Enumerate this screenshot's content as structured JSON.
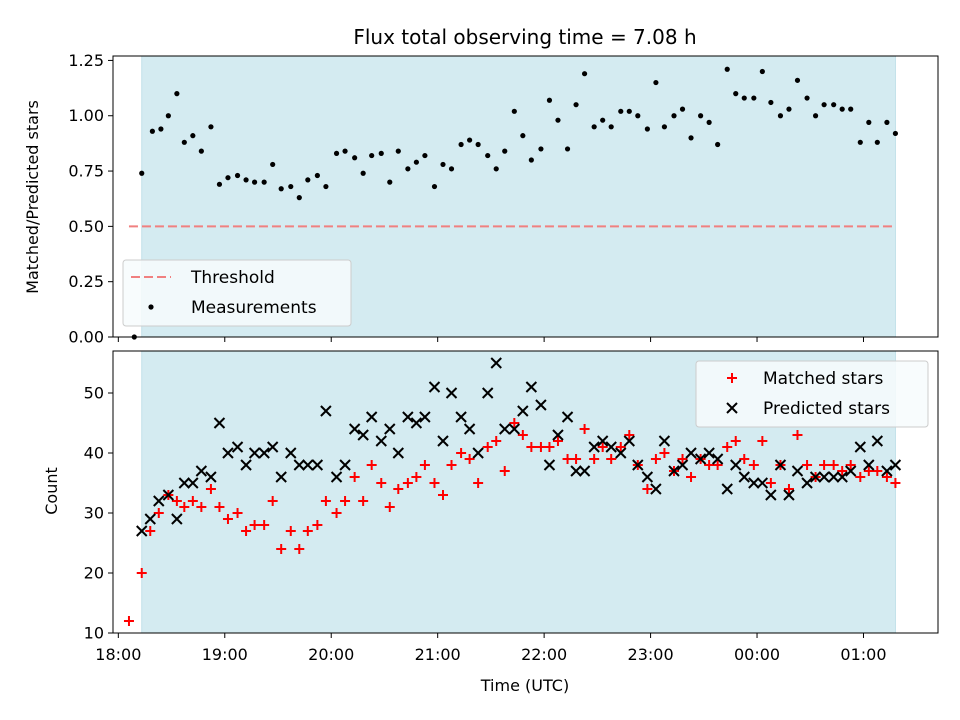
{
  "chart_data": [
    {
      "type": "scatter",
      "title": "Flux total observing time = 7.08 h",
      "xlabel": "",
      "ylabel": "Matched/Predicted stars",
      "x_unit": "hours (UTC, continuing past midnight)",
      "xlim": [
        17.95,
        25.7
      ],
      "ylim": [
        0,
        1.27
      ],
      "yticks": [
        0,
        0.25,
        0.5,
        0.75,
        1.0,
        1.25
      ],
      "ytick_labels": [
        "0.00",
        "0.25",
        "0.50",
        "0.75",
        "1.00",
        "1.25"
      ],
      "shaded_span": [
        18.22,
        25.3
      ],
      "shade_color": "#d4ebf1",
      "threshold": {
        "name": "Threshold",
        "y": 0.5,
        "x": [
          18.1,
          25.3
        ],
        "color": "#f08080",
        "style": "dashed"
      },
      "series": [
        {
          "name": "Measurements",
          "color": "#000000",
          "marker": "dot",
          "points": [
            [
              18.15,
              0.0
            ],
            [
              18.22,
              0.74
            ],
            [
              18.32,
              0.93
            ],
            [
              18.4,
              0.94
            ],
            [
              18.47,
              1.0
            ],
            [
              18.55,
              1.1
            ],
            [
              18.62,
              0.88
            ],
            [
              18.7,
              0.91
            ],
            [
              18.78,
              0.84
            ],
            [
              18.87,
              0.95
            ],
            [
              18.95,
              0.69
            ],
            [
              19.03,
              0.72
            ],
            [
              19.12,
              0.73
            ],
            [
              19.2,
              0.71
            ],
            [
              19.28,
              0.7
            ],
            [
              19.37,
              0.7
            ],
            [
              19.45,
              0.78
            ],
            [
              19.53,
              0.67
            ],
            [
              19.62,
              0.68
            ],
            [
              19.7,
              0.63
            ],
            [
              19.78,
              0.71
            ],
            [
              19.87,
              0.73
            ],
            [
              19.95,
              0.68
            ],
            [
              20.05,
              0.83
            ],
            [
              20.13,
              0.84
            ],
            [
              20.22,
              0.81
            ],
            [
              20.3,
              0.74
            ],
            [
              20.38,
              0.82
            ],
            [
              20.47,
              0.83
            ],
            [
              20.55,
              0.7
            ],
            [
              20.63,
              0.84
            ],
            [
              20.72,
              0.76
            ],
            [
              20.8,
              0.79
            ],
            [
              20.88,
              0.82
            ],
            [
              20.97,
              0.68
            ],
            [
              21.05,
              0.78
            ],
            [
              21.13,
              0.76
            ],
            [
              21.22,
              0.87
            ],
            [
              21.3,
              0.89
            ],
            [
              21.38,
              0.87
            ],
            [
              21.47,
              0.82
            ],
            [
              21.55,
              0.76
            ],
            [
              21.63,
              0.84
            ],
            [
              21.72,
              1.02
            ],
            [
              21.8,
              0.91
            ],
            [
              21.88,
              0.8
            ],
            [
              21.97,
              0.85
            ],
            [
              22.05,
              1.07
            ],
            [
              22.13,
              0.98
            ],
            [
              22.22,
              0.85
            ],
            [
              22.3,
              1.05
            ],
            [
              22.38,
              1.19
            ],
            [
              22.47,
              0.95
            ],
            [
              22.55,
              0.98
            ],
            [
              22.63,
              0.95
            ],
            [
              22.72,
              1.02
            ],
            [
              22.8,
              1.02
            ],
            [
              22.88,
              1.0
            ],
            [
              22.97,
              0.94
            ],
            [
              23.05,
              1.15
            ],
            [
              23.13,
              0.95
            ],
            [
              23.22,
              1.0
            ],
            [
              23.3,
              1.03
            ],
            [
              23.38,
              0.9
            ],
            [
              23.47,
              1.0
            ],
            [
              23.55,
              0.97
            ],
            [
              23.63,
              0.87
            ],
            [
              23.72,
              1.21
            ],
            [
              23.8,
              1.1
            ],
            [
              23.88,
              1.08
            ],
            [
              23.97,
              1.08
            ],
            [
              24.05,
              1.2
            ],
            [
              24.13,
              1.06
            ],
            [
              24.22,
              1.0
            ],
            [
              24.3,
              1.03
            ],
            [
              24.38,
              1.16
            ],
            [
              24.47,
              1.08
            ],
            [
              24.55,
              1.0
            ],
            [
              24.63,
              1.05
            ],
            [
              24.72,
              1.05
            ],
            [
              24.8,
              1.03
            ],
            [
              24.88,
              1.03
            ],
            [
              24.97,
              0.88
            ],
            [
              25.05,
              0.97
            ],
            [
              25.13,
              0.88
            ],
            [
              25.22,
              0.97
            ],
            [
              25.3,
              0.92
            ]
          ]
        }
      ],
      "legend": {
        "placement": "lower-left",
        "entries": [
          "Threshold",
          "Measurements"
        ]
      },
      "grid": false
    },
    {
      "type": "scatter",
      "title": "",
      "xlabel": "Time (UTC)",
      "ylabel": "Count",
      "x_unit": "hours (UTC, continuing past midnight)",
      "xlim": [
        17.95,
        25.7
      ],
      "ylim": [
        10,
        57
      ],
      "yticks": [
        10,
        20,
        30,
        40,
        50
      ],
      "xticks": [
        18,
        19,
        20,
        21,
        22,
        23,
        24,
        25
      ],
      "xtick_labels": [
        "18:00",
        "19:00",
        "20:00",
        "21:00",
        "22:00",
        "23:00",
        "00:00",
        "01:00"
      ],
      "shaded_span": [
        18.22,
        25.3
      ],
      "shade_color": "#d4ebf1",
      "series": [
        {
          "name": "Matched stars",
          "color": "#ff0000",
          "marker": "plus",
          "points": [
            [
              18.1,
              12
            ],
            [
              18.22,
              20
            ],
            [
              18.3,
              27
            ],
            [
              18.38,
              30
            ],
            [
              18.47,
              33
            ],
            [
              18.55,
              32
            ],
            [
              18.62,
              31
            ],
            [
              18.7,
              32
            ],
            [
              18.78,
              31
            ],
            [
              18.87,
              34
            ],
            [
              18.95,
              31
            ],
            [
              19.03,
              29
            ],
            [
              19.12,
              30
            ],
            [
              19.2,
              27
            ],
            [
              19.28,
              28
            ],
            [
              19.37,
              28
            ],
            [
              19.45,
              32
            ],
            [
              19.53,
              24
            ],
            [
              19.62,
              27
            ],
            [
              19.7,
              24
            ],
            [
              19.78,
              27
            ],
            [
              19.87,
              28
            ],
            [
              19.95,
              32
            ],
            [
              20.05,
              30
            ],
            [
              20.13,
              32
            ],
            [
              20.22,
              36
            ],
            [
              20.3,
              32
            ],
            [
              20.38,
              38
            ],
            [
              20.47,
              35
            ],
            [
              20.55,
              31
            ],
            [
              20.63,
              34
            ],
            [
              20.72,
              35
            ],
            [
              20.8,
              36
            ],
            [
              20.88,
              38
            ],
            [
              20.97,
              35
            ],
            [
              21.05,
              33
            ],
            [
              21.13,
              38
            ],
            [
              21.22,
              40
            ],
            [
              21.3,
              39
            ],
            [
              21.38,
              35
            ],
            [
              21.47,
              41
            ],
            [
              21.55,
              42
            ],
            [
              21.63,
              37
            ],
            [
              21.72,
              45
            ],
            [
              21.8,
              43
            ],
            [
              21.88,
              41
            ],
            [
              21.97,
              41
            ],
            [
              22.05,
              41
            ],
            [
              22.13,
              42
            ],
            [
              22.22,
              39
            ],
            [
              22.3,
              39
            ],
            [
              22.38,
              44
            ],
            [
              22.47,
              39
            ],
            [
              22.55,
              41
            ],
            [
              22.63,
              39
            ],
            [
              22.72,
              41
            ],
            [
              22.8,
              43
            ],
            [
              22.88,
              38
            ],
            [
              22.97,
              34
            ],
            [
              23.05,
              39
            ],
            [
              23.13,
              40
            ],
            [
              23.22,
              37
            ],
            [
              23.3,
              39
            ],
            [
              23.38,
              36
            ],
            [
              23.47,
              39
            ],
            [
              23.55,
              38
            ],
            [
              23.63,
              38
            ],
            [
              23.72,
              41
            ],
            [
              23.8,
              42
            ],
            [
              23.88,
              39
            ],
            [
              23.97,
              38
            ],
            [
              24.05,
              42
            ],
            [
              24.13,
              35
            ],
            [
              24.22,
              38
            ],
            [
              24.3,
              34
            ],
            [
              24.38,
              43
            ],
            [
              24.47,
              38
            ],
            [
              24.55,
              36
            ],
            [
              24.63,
              38
            ],
            [
              24.72,
              38
            ],
            [
              24.8,
              37
            ],
            [
              24.88,
              38
            ],
            [
              24.97,
              36
            ],
            [
              25.05,
              37
            ],
            [
              25.13,
              37
            ],
            [
              25.22,
              36
            ],
            [
              25.3,
              35
            ]
          ]
        },
        {
          "name": "Predicted stars",
          "color": "#000000",
          "marker": "x",
          "points": [
            [
              18.22,
              27
            ],
            [
              18.3,
              29
            ],
            [
              18.38,
              32
            ],
            [
              18.47,
              33
            ],
            [
              18.55,
              29
            ],
            [
              18.62,
              35
            ],
            [
              18.7,
              35
            ],
            [
              18.78,
              37
            ],
            [
              18.87,
              36
            ],
            [
              18.95,
              45
            ],
            [
              19.03,
              40
            ],
            [
              19.12,
              41
            ],
            [
              19.2,
              38
            ],
            [
              19.28,
              40
            ],
            [
              19.37,
              40
            ],
            [
              19.45,
              41
            ],
            [
              19.53,
              36
            ],
            [
              19.62,
              40
            ],
            [
              19.7,
              38
            ],
            [
              19.78,
              38
            ],
            [
              19.87,
              38
            ],
            [
              19.95,
              47
            ],
            [
              20.05,
              36
            ],
            [
              20.13,
              38
            ],
            [
              20.22,
              44
            ],
            [
              20.3,
              43
            ],
            [
              20.38,
              46
            ],
            [
              20.47,
              42
            ],
            [
              20.55,
              44
            ],
            [
              20.63,
              40
            ],
            [
              20.72,
              46
            ],
            [
              20.8,
              45
            ],
            [
              20.88,
              46
            ],
            [
              20.97,
              51
            ],
            [
              21.05,
              42
            ],
            [
              21.13,
              50
            ],
            [
              21.22,
              46
            ],
            [
              21.3,
              44
            ],
            [
              21.38,
              40
            ],
            [
              21.47,
              50
            ],
            [
              21.55,
              55
            ],
            [
              21.63,
              44
            ],
            [
              21.72,
              44
            ],
            [
              21.8,
              47
            ],
            [
              21.88,
              51
            ],
            [
              21.97,
              48
            ],
            [
              22.05,
              38
            ],
            [
              22.13,
              43
            ],
            [
              22.22,
              46
            ],
            [
              22.3,
              37
            ],
            [
              22.38,
              37
            ],
            [
              22.47,
              41
            ],
            [
              22.55,
              42
            ],
            [
              22.63,
              41
            ],
            [
              22.72,
              40
            ],
            [
              22.8,
              42
            ],
            [
              22.88,
              38
            ],
            [
              22.97,
              36
            ],
            [
              23.05,
              34
            ],
            [
              23.13,
              42
            ],
            [
              23.22,
              37
            ],
            [
              23.3,
              38
            ],
            [
              23.38,
              40
            ],
            [
              23.47,
              39
            ],
            [
              23.55,
              40
            ],
            [
              23.63,
              39
            ],
            [
              23.72,
              34
            ],
            [
              23.8,
              38
            ],
            [
              23.88,
              36
            ],
            [
              23.97,
              35
            ],
            [
              24.05,
              35
            ],
            [
              24.13,
              33
            ],
            [
              24.22,
              38
            ],
            [
              24.3,
              33
            ],
            [
              24.38,
              37
            ],
            [
              24.47,
              35
            ],
            [
              24.55,
              36
            ],
            [
              24.63,
              36
            ],
            [
              24.72,
              36
            ],
            [
              24.8,
              36
            ],
            [
              24.88,
              37
            ],
            [
              24.97,
              41
            ],
            [
              25.05,
              38
            ],
            [
              25.13,
              42
            ],
            [
              25.22,
              37
            ],
            [
              25.3,
              38
            ]
          ]
        }
      ],
      "legend": {
        "placement": "top-right",
        "entries": [
          "Matched stars",
          "Predicted stars"
        ]
      },
      "grid": false
    }
  ]
}
